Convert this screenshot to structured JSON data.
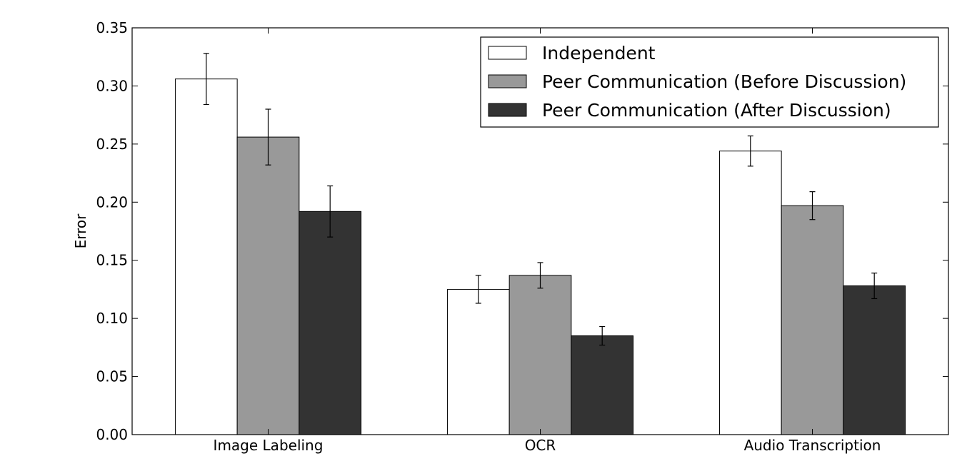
{
  "chart_data": {
    "type": "bar",
    "title": "",
    "xlabel": "",
    "ylabel": "Error",
    "ylim": [
      0,
      0.35
    ],
    "yticks": [
      "0.00",
      "0.05",
      "0.10",
      "0.15",
      "0.20",
      "0.25",
      "0.30",
      "0.35"
    ],
    "categories": [
      "Image Labeling",
      "OCR",
      "Audio Transcription"
    ],
    "series": [
      {
        "name": "Independent",
        "color": "#ffffff",
        "values": [
          0.306,
          0.125,
          0.244
        ],
        "errors": [
          0.022,
          0.012,
          0.013
        ]
      },
      {
        "name": "Peer Communication (Before Discussion)",
        "color": "#999999",
        "values": [
          0.256,
          0.137,
          0.197
        ],
        "errors": [
          0.024,
          0.011,
          0.012
        ]
      },
      {
        "name": "Peer Communication (After Discussion)",
        "color": "#333333",
        "values": [
          0.192,
          0.085,
          0.128
        ],
        "errors": [
          0.022,
          0.008,
          0.011
        ]
      }
    ],
    "legend_position": "upper-right",
    "grid": false
  }
}
